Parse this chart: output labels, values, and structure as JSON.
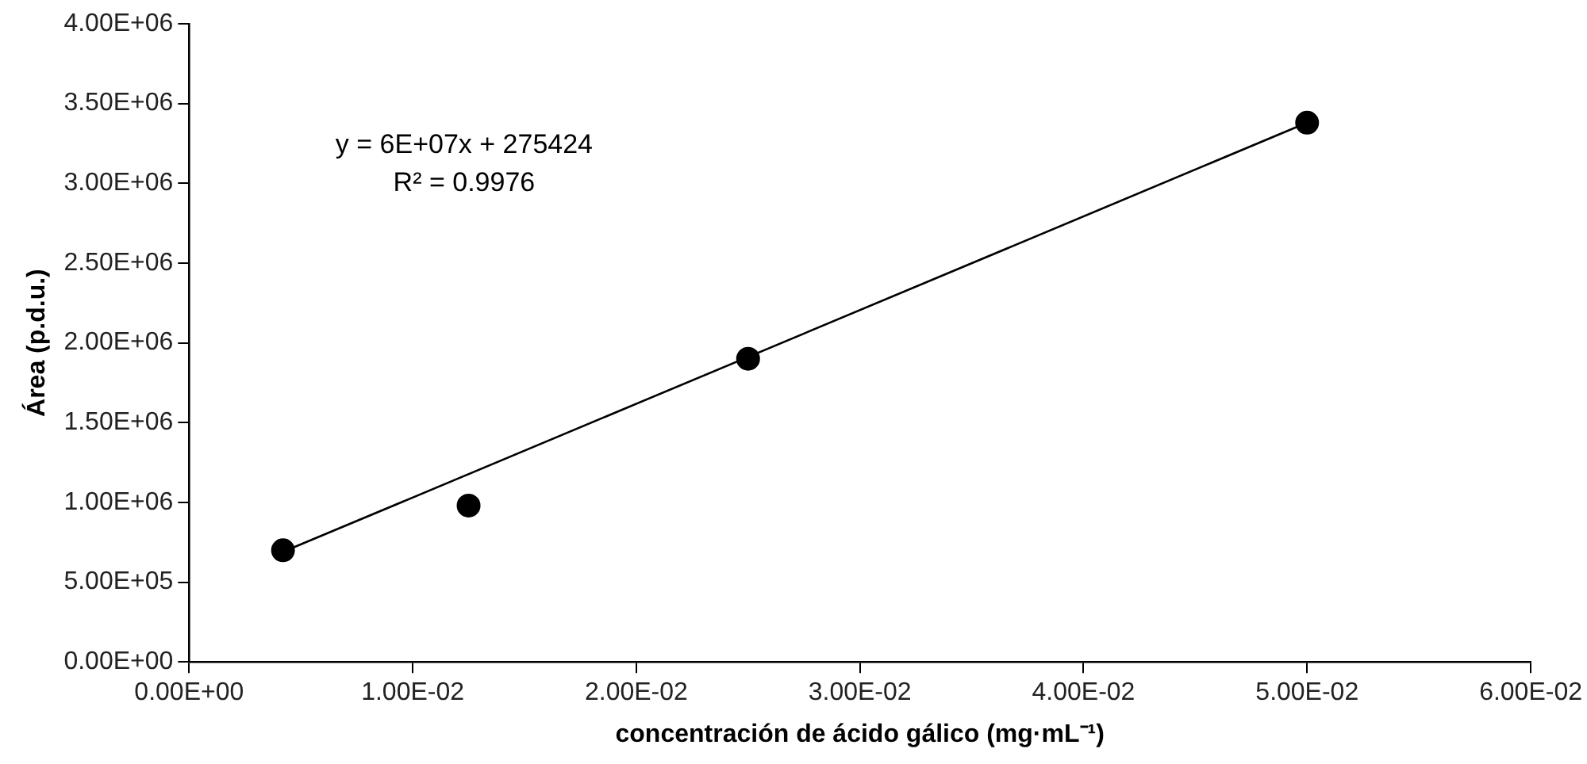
{
  "chart_data": {
    "type": "scatter",
    "xlabel": "concentración de ácido gálico (mg·mL⁻¹)",
    "ylabel": "Área (p.d.u.)",
    "x": [
      0.0042,
      0.0125,
      0.025,
      0.05
    ],
    "series": [
      {
        "color": "#000000",
        "values": [
          700000,
          980000,
          1900000,
          3380000
        ],
        "marker": "circle"
      },
      {
        "type": "line",
        "color": "#000000",
        "x": [
          0.0042,
          0.05
        ],
        "values": [
          690000,
          3380000
        ],
        "marker": "none"
      }
    ],
    "xlim": [
      0,
      0.06
    ],
    "xticks": [
      {
        "value": 0,
        "label": "0.00E+00"
      },
      {
        "value": 0.01,
        "label": "1.00E-02"
      },
      {
        "value": 0.02,
        "label": "2.00E-02"
      },
      {
        "value": 0.03,
        "label": "3.00E-02"
      },
      {
        "value": 0.04,
        "label": "4.00E-02"
      },
      {
        "value": 0.05,
        "label": "5.00E-02"
      },
      {
        "value": 0.06,
        "label": "6.00E-02"
      }
    ],
    "ylim": [
      0,
      4000000
    ],
    "yticks": [
      {
        "value": 0,
        "label": "0.00E+00"
      },
      {
        "value": 500000,
        "label": "5.00E+05"
      },
      {
        "value": 1000000,
        "label": "1.00E+06"
      },
      {
        "value": 1500000,
        "label": "1.50E+06"
      },
      {
        "value": 2000000,
        "label": "2.00E+06"
      },
      {
        "value": 2500000,
        "label": "2.50E+06"
      },
      {
        "value": 3000000,
        "label": "3.00E+06"
      },
      {
        "value": 3500000,
        "label": "3.50E+06"
      },
      {
        "value": 4000000,
        "label": "4.00E+06"
      }
    ],
    "annotations": [
      "y = 6E+07x + 275424",
      "R² = 0.9976"
    ],
    "grid": false,
    "legend": false
  }
}
